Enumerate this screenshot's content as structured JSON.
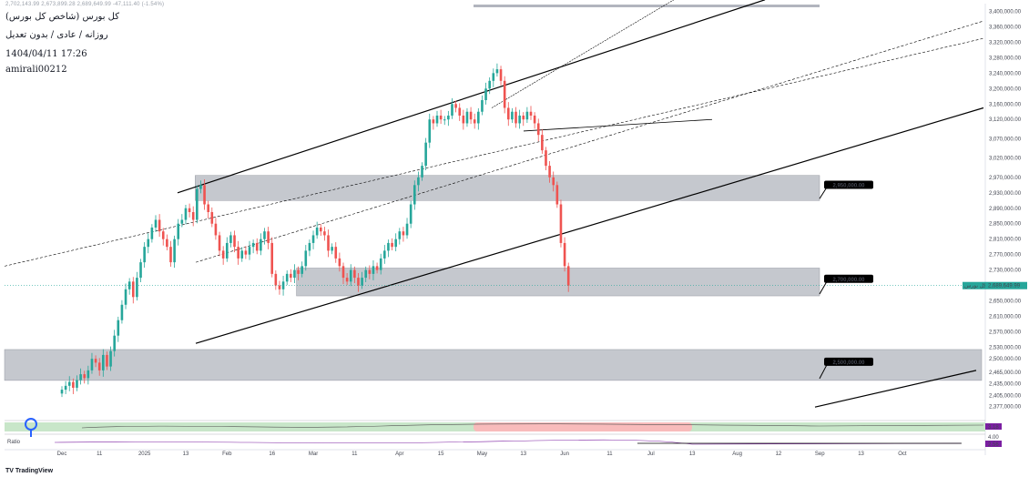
{
  "header": {
    "title": "کل بورس (شاخص کل بورس)",
    "subtitle": "روزانه / عادی / بدون تعدیل",
    "datetime": "1404/04/11 17:26",
    "author": "amirali00212",
    "ohlc_line": "2,702,143.99  2,673,899.28  2,689,649.99  -47,111.40 (-1.54%)"
  },
  "footer": {
    "logo": "TradingView"
  },
  "colors": {
    "up": "#26a69a",
    "down": "#ef5350",
    "zone": "#b2b5be",
    "price_tag": "#26a69a",
    "tag_bg": "#000000",
    "ind_green": "#c8e6c9",
    "ind_red": "#f8bbbb"
  },
  "chart_data": {
    "type": "candlestick",
    "ylim": [
      2340000,
      3420000
    ],
    "y_ticks": [
      "3,400,000.00",
      "3,360,000.00",
      "3,320,000.00",
      "3,280,000.00",
      "3,240,000.00",
      "3,200,000.00",
      "3,160,000.00",
      "3,120,000.00",
      "3,070,000.00",
      "3,020,000.00",
      "2,970,000.00",
      "2,930,000.00",
      "2,890,000.00",
      "2,850,000.00",
      "2,810,000.00",
      "2,770,000.00",
      "2,730,000.00",
      "2,690,000.00",
      "2,650,000.00",
      "2,610,000.00",
      "2,570,000.00",
      "2,530,000.00",
      "2,500,000.00",
      "2,465,000.00",
      "2,435,000.00",
      "2,405,000.00",
      "2,377,000.00"
    ],
    "y_tick_values": [
      3400000,
      3360000,
      3320000,
      3280000,
      3240000,
      3200000,
      3160000,
      3120000,
      3070000,
      3020000,
      2970000,
      2930000,
      2890000,
      2850000,
      2810000,
      2770000,
      2730000,
      2690000,
      2650000,
      2610000,
      2570000,
      2530000,
      2500000,
      2465000,
      2435000,
      2405000,
      2377000
    ],
    "x_ticks": [
      {
        "label": "Dec",
        "bar": 0
      },
      {
        "label": "11",
        "bar": 10
      },
      {
        "label": "2025",
        "bar": 22
      },
      {
        "label": "13",
        "bar": 33
      },
      {
        "label": "Feb",
        "bar": 44
      },
      {
        "label": "16",
        "bar": 56
      },
      {
        "label": "Mar",
        "bar": 67
      },
      {
        "label": "11",
        "bar": 78
      },
      {
        "label": "Apr",
        "bar": 90
      },
      {
        "label": "15",
        "bar": 101
      },
      {
        "label": "May",
        "bar": 112
      },
      {
        "label": "13",
        "bar": 123
      },
      {
        "label": "Jun",
        "bar": 134
      },
      {
        "label": "11",
        "bar": 146
      },
      {
        "label": "Jul",
        "bar": 157
      },
      {
        "label": "13",
        "bar": 168
      },
      {
        "label": "Aug",
        "bar": 180
      },
      {
        "label": "12",
        "bar": 191
      },
      {
        "label": "Sep",
        "bar": 202
      },
      {
        "label": "13",
        "bar": 213
      },
      {
        "label": "Oct",
        "bar": 224
      }
    ],
    "close": [
      2420000,
      2430000,
      2440000,
      2425000,
      2445000,
      2460000,
      2450000,
      2470000,
      2500000,
      2490000,
      2470000,
      2510000,
      2480000,
      2520000,
      2560000,
      2600000,
      2640000,
      2680000,
      2700000,
      2660000,
      2710000,
      2750000,
      2790000,
      2810000,
      2840000,
      2860000,
      2830000,
      2810000,
      2790000,
      2750000,
      2810000,
      2850000,
      2860000,
      2890000,
      2880000,
      2860000,
      2940000,
      2950000,
      2900000,
      2880000,
      2850000,
      2820000,
      2780000,
      2760000,
      2800000,
      2820000,
      2790000,
      2760000,
      2780000,
      2770000,
      2790000,
      2800000,
      2780000,
      2810000,
      2830000,
      2800000,
      2720000,
      2690000,
      2680000,
      2700000,
      2720000,
      2710000,
      2730000,
      2720000,
      2740000,
      2780000,
      2800000,
      2820000,
      2840000,
      2830000,
      2820000,
      2780000,
      2790000,
      2760000,
      2740000,
      2710000,
      2700000,
      2730000,
      2710000,
      2690000,
      2710000,
      2730000,
      2720000,
      2740000,
      2730000,
      2760000,
      2780000,
      2800000,
      2790000,
      2810000,
      2830000,
      2820000,
      2850000,
      2900000,
      2950000,
      2970000,
      3000000,
      3060000,
      3120000,
      3110000,
      3130000,
      3120000,
      3120000,
      3130000,
      3160000,
      3150000,
      3130000,
      3110000,
      3140000,
      3120000,
      3110000,
      3140000,
      3170000,
      3200000,
      3220000,
      3240000,
      3250000,
      3220000,
      3150000,
      3120000,
      3140000,
      3110000,
      3130000,
      3120000,
      3140000,
      3130000,
      3110000,
      3080000,
      3040000,
      3000000,
      2970000,
      2950000,
      2900000,
      2800000,
      2740000,
      2689650
    ],
    "open_offset_note": "",
    "zones": [
      {
        "from": 2910000,
        "to": 2975000,
        "label": "2,950,000.00",
        "start_bar": 36
      },
      {
        "from": 2663000,
        "to": 2735000,
        "label": "2,700,000.00",
        "start_bar": 63
      },
      {
        "from": 2444000,
        "to": 2524000,
        "label": "2,500,000.00",
        "start_bar": 0
      }
    ],
    "last_price": 2689650,
    "last_price_label": "2,689,649.99",
    "last_price_name": "کل بورس",
    "indicator_values": [
      "3.18",
      "4.00",
      "2.56"
    ],
    "indicator_label": "Ratio"
  }
}
